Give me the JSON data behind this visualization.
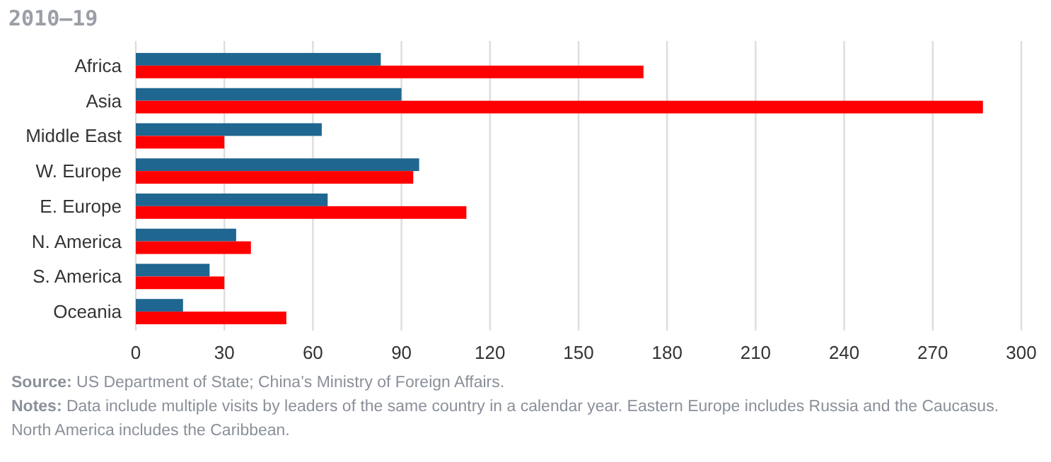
{
  "chart_data": {
    "type": "bar",
    "orientation": "horizontal",
    "title": "2010–19",
    "categories": [
      "Africa",
      "Asia",
      "Middle East",
      "W. Europe",
      "E. Europe",
      "N. America",
      "S. America",
      "Oceania"
    ],
    "series": [
      {
        "color": "#1f6690",
        "values": [
          83,
          90,
          63,
          96,
          65,
          34,
          25,
          16
        ]
      },
      {
        "color": "#ff0000",
        "values": [
          172,
          287,
          30,
          94,
          112,
          39,
          30,
          51
        ]
      }
    ],
    "xlim": [
      0,
      300
    ],
    "xticks": [
      0,
      30,
      60,
      90,
      120,
      150,
      180,
      210,
      240,
      270,
      300
    ],
    "grid": "x",
    "annotations": [
      "Source: US Department of State; China’s Ministry of Foreign Affairs.",
      "Notes: Data include multiple visits by leaders of the same country in a calendar year. Eastern Europe includes Russia and the Caucasus. North America includes the Caribbean."
    ]
  }
}
